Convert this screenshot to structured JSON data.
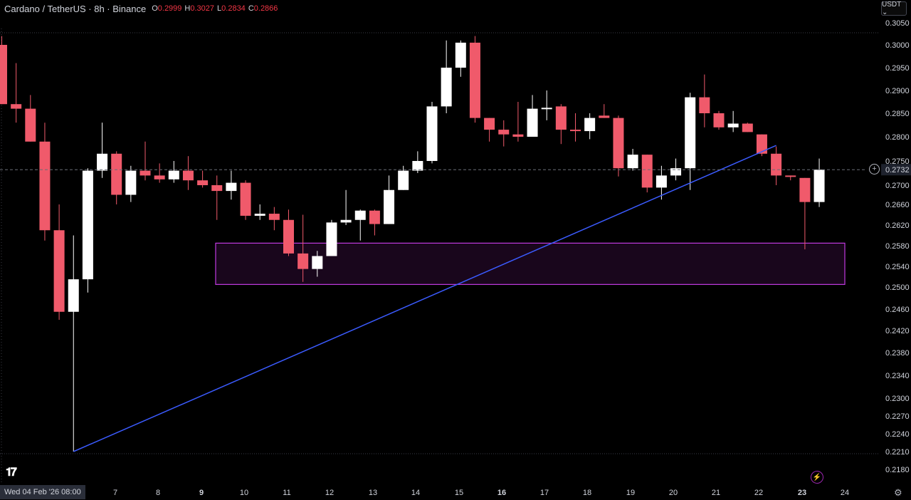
{
  "header": {
    "symbol": "Cardano / TetherUS · 8h · Binance",
    "o_label": "O",
    "o_value": "0.2999",
    "h_label": "H",
    "h_value": "0.3027",
    "l_label": "L",
    "l_value": "0.2834",
    "c_label": "C",
    "c_value": "0.2866"
  },
  "currency_button": "USDT ⌄",
  "date_cursor": "Wed 04 Feb '26   08:00",
  "colors": {
    "up": "#ffffff",
    "down": "#f05a6b",
    "trendline": "#3b5bff",
    "zone": "#c13ae0",
    "background": "#000000"
  },
  "icons": [
    "tradingview-logo-icon",
    "add-icon",
    "flash-icon",
    "gear-icon"
  ],
  "chart_data": {
    "type": "candlestick",
    "title": "Cardano / TetherUS · 8h · Binance",
    "y_ticks": [
      "0.3050",
      "0.3000",
      "0.2950",
      "0.2900",
      "0.2850",
      "0.2800",
      "0.2750",
      "0.2700",
      "0.2660",
      "0.2620",
      "0.2580",
      "0.2540",
      "0.2500",
      "0.2460",
      "0.2420",
      "0.2380",
      "0.2340",
      "0.2300",
      "0.2270",
      "0.2240",
      "0.2210",
      "0.2180"
    ],
    "x_ticks": [
      "7",
      "8",
      "9",
      "10",
      "11",
      "12",
      "13",
      "14",
      "15",
      "16",
      "17",
      "18",
      "19",
      "20",
      "21",
      "22",
      "23",
      "24"
    ],
    "x_ticks_bold": [
      "9",
      "16",
      "23"
    ],
    "current_price": "0.2732",
    "candles": [
      [
        0.3,
        0.302,
        0.287,
        0.287
      ],
      [
        0.287,
        0.296,
        0.283,
        0.286
      ],
      [
        0.286,
        0.289,
        0.279,
        0.279
      ],
      [
        0.279,
        0.283,
        0.259,
        0.261
      ],
      [
        0.261,
        0.266,
        0.244,
        0.2455
      ],
      [
        0.2455,
        0.26,
        0.221,
        0.2515
      ],
      [
        0.2515,
        0.2735,
        0.249,
        0.273
      ],
      [
        0.273,
        0.283,
        0.2715,
        0.2765
      ],
      [
        0.2765,
        0.277,
        0.266,
        0.268
      ],
      [
        0.268,
        0.274,
        0.2665,
        0.273
      ],
      [
        0.273,
        0.279,
        0.271,
        0.272
      ],
      [
        0.272,
        0.2745,
        0.2705,
        0.2712
      ],
      [
        0.2712,
        0.275,
        0.2705,
        0.273
      ],
      [
        0.273,
        0.276,
        0.269,
        0.271
      ],
      [
        0.271,
        0.273,
        0.2695,
        0.27
      ],
      [
        0.27,
        0.272,
        0.263,
        0.2688
      ],
      [
        0.2688,
        0.273,
        0.267,
        0.2705
      ],
      [
        0.2705,
        0.271,
        0.263,
        0.2638
      ],
      [
        0.2638,
        0.266,
        0.263,
        0.2642
      ],
      [
        0.2642,
        0.2655,
        0.261,
        0.263
      ],
      [
        0.263,
        0.265,
        0.256,
        0.2565
      ],
      [
        0.2565,
        0.264,
        0.251,
        0.2535
      ],
      [
        0.2535,
        0.257,
        0.252,
        0.256
      ],
      [
        0.256,
        0.263,
        0.256,
        0.2625
      ],
      [
        0.2625,
        0.269,
        0.262,
        0.263
      ],
      [
        0.263,
        0.265,
        0.259,
        0.2648
      ],
      [
        0.2648,
        0.265,
        0.26,
        0.2622
      ],
      [
        0.2622,
        0.272,
        0.2622,
        0.269
      ],
      [
        0.269,
        0.274,
        0.269,
        0.273
      ],
      [
        0.273,
        0.277,
        0.2725,
        0.275
      ],
      [
        0.275,
        0.2875,
        0.2745,
        0.2865
      ],
      [
        0.2865,
        0.301,
        0.285,
        0.295
      ],
      [
        0.295,
        0.301,
        0.293,
        0.3005
      ],
      [
        0.3005,
        0.302,
        0.283,
        0.284
      ],
      [
        0.284,
        0.284,
        0.279,
        0.2815
      ],
      [
        0.2815,
        0.2835,
        0.278,
        0.2805
      ],
      [
        0.2805,
        0.2875,
        0.279,
        0.28
      ],
      [
        0.28,
        0.289,
        0.28,
        0.286
      ],
      [
        0.286,
        0.29,
        0.2835,
        0.2862
      ],
      [
        0.2865,
        0.287,
        0.2785,
        0.2815
      ],
      [
        0.2815,
        0.285,
        0.279,
        0.2812
      ],
      [
        0.2812,
        0.285,
        0.2795,
        0.284
      ],
      [
        0.2845,
        0.287,
        0.284,
        0.284
      ],
      [
        0.284,
        0.2845,
        0.2718,
        0.2735
      ],
      [
        0.2735,
        0.2775,
        0.273,
        0.2763
      ],
      [
        0.2763,
        0.2763,
        0.2685,
        0.2695
      ],
      [
        0.2695,
        0.274,
        0.267,
        0.272
      ],
      [
        0.272,
        0.2755,
        0.271,
        0.2735
      ],
      [
        0.2735,
        0.2895,
        0.269,
        0.2885
      ],
      [
        0.2885,
        0.2935,
        0.282,
        0.285
      ],
      [
        0.285,
        0.2855,
        0.2815,
        0.282
      ],
      [
        0.282,
        0.2855,
        0.281,
        0.2828
      ],
      [
        0.2828,
        0.283,
        0.281,
        0.281
      ],
      [
        0.2805,
        0.2805,
        0.276,
        0.2765
      ],
      [
        0.2765,
        0.278,
        0.27,
        0.272
      ],
      [
        0.272,
        0.272,
        0.271,
        0.2718
      ],
      [
        0.2715,
        0.2715,
        0.2573,
        0.2665
      ],
      [
        0.2665,
        0.2755,
        0.2655,
        0.2732
      ]
    ],
    "zone": {
      "top": 0.2585,
      "bottom": 0.2505
    },
    "trendline": {
      "from_candle": 5,
      "from_price": 0.221,
      "to_candle": 54,
      "to_price": 0.2782
    }
  }
}
